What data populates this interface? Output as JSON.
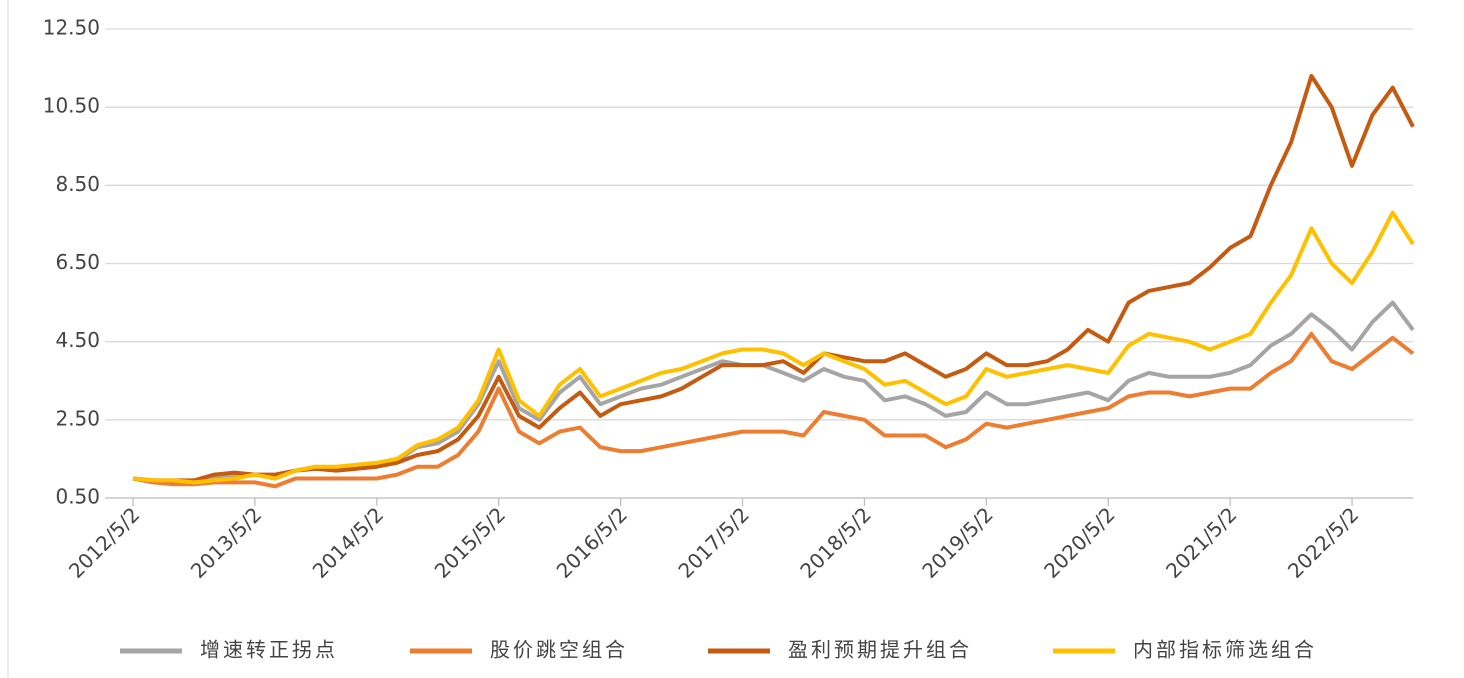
{
  "chart_data": {
    "type": "line",
    "categories": [
      "2012/5/2",
      null,
      null,
      null,
      null,
      null,
      "2013/5/2",
      null,
      null,
      null,
      null,
      null,
      "2014/5/2",
      null,
      null,
      null,
      null,
      null,
      "2015/5/2",
      null,
      null,
      null,
      null,
      null,
      "2016/5/2",
      null,
      null,
      null,
      null,
      null,
      "2017/5/2",
      null,
      null,
      null,
      null,
      null,
      "2018/5/2",
      null,
      null,
      null,
      null,
      null,
      "2019/5/2",
      null,
      null,
      null,
      null,
      null,
      "2020/5/2",
      null,
      null,
      null,
      null,
      null,
      "2021/5/2",
      null,
      null,
      null,
      null,
      null,
      "2022/5/2",
      null,
      null,
      null
    ],
    "series": [
      {
        "name": "增速转正拐点",
        "color": "#a5a5a5",
        "values": [
          1.0,
          0.95,
          0.9,
          0.85,
          1.0,
          1.05,
          1.1,
          1.0,
          1.2,
          1.3,
          1.25,
          1.3,
          1.35,
          1.45,
          1.8,
          1.9,
          2.2,
          2.9,
          4.0,
          2.8,
          2.5,
          3.2,
          3.6,
          2.9,
          3.1,
          3.3,
          3.4,
          3.6,
          3.8,
          4.0,
          3.9,
          3.9,
          3.7,
          3.5,
          3.8,
          3.6,
          3.5,
          3.0,
          3.1,
          2.9,
          2.6,
          2.7,
          3.2,
          2.9,
          2.9,
          3.0,
          3.1,
          3.2,
          3.0,
          3.5,
          3.7,
          3.6,
          3.6,
          3.6,
          3.7,
          3.9,
          4.4,
          4.7,
          5.2,
          4.8,
          4.3,
          5.0,
          5.5,
          4.8
        ]
      },
      {
        "name": "股价跳空组合",
        "color": "#ed7d31",
        "values": [
          1.0,
          0.9,
          0.85,
          0.85,
          0.9,
          0.9,
          0.9,
          0.8,
          1.0,
          1.0,
          1.0,
          1.0,
          1.0,
          1.1,
          1.3,
          1.3,
          1.6,
          2.2,
          3.3,
          2.2,
          1.9,
          2.2,
          2.3,
          1.8,
          1.7,
          1.7,
          1.8,
          1.9,
          2.0,
          2.1,
          2.2,
          2.2,
          2.2,
          2.1,
          2.7,
          2.6,
          2.5,
          2.1,
          2.1,
          2.1,
          1.8,
          2.0,
          2.4,
          2.3,
          2.4,
          2.5,
          2.6,
          2.7,
          2.8,
          3.1,
          3.2,
          3.2,
          3.1,
          3.2,
          3.3,
          3.3,
          3.7,
          4.0,
          4.7,
          4.0,
          3.8,
          4.2,
          4.6,
          4.2
        ]
      },
      {
        "name": "盈利预期提升组合",
        "color": "#c55a11",
        "values": [
          1.0,
          0.95,
          0.95,
          0.95,
          1.1,
          1.15,
          1.1,
          1.1,
          1.2,
          1.25,
          1.2,
          1.25,
          1.3,
          1.4,
          1.6,
          1.7,
          2.0,
          2.6,
          3.6,
          2.6,
          2.3,
          2.8,
          3.2,
          2.6,
          2.9,
          3.0,
          3.1,
          3.3,
          3.6,
          3.9,
          3.9,
          3.9,
          4.0,
          3.7,
          4.2,
          4.1,
          4.0,
          4.0,
          4.2,
          3.9,
          3.6,
          3.8,
          4.2,
          3.9,
          3.9,
          4.0,
          4.3,
          4.8,
          4.5,
          5.5,
          5.8,
          5.9,
          6.0,
          6.4,
          6.9,
          7.2,
          8.5,
          9.6,
          11.3,
          10.5,
          9.0,
          10.3,
          11.0,
          10.0
        ]
      },
      {
        "name": "内部指标筛选组合",
        "color": "#ffc000",
        "values": [
          1.0,
          0.95,
          0.95,
          0.9,
          0.95,
          1.0,
          1.1,
          1.0,
          1.2,
          1.3,
          1.3,
          1.35,
          1.4,
          1.5,
          1.85,
          2.0,
          2.3,
          3.0,
          4.3,
          3.0,
          2.6,
          3.4,
          3.8,
          3.1,
          3.3,
          3.5,
          3.7,
          3.8,
          4.0,
          4.2,
          4.3,
          4.3,
          4.2,
          3.9,
          4.2,
          4.0,
          3.8,
          3.4,
          3.5,
          3.2,
          2.9,
          3.1,
          3.8,
          3.6,
          3.7,
          3.8,
          3.9,
          3.8,
          3.7,
          4.4,
          4.7,
          4.6,
          4.5,
          4.3,
          4.5,
          4.7,
          5.5,
          6.2,
          7.4,
          6.5,
          6.0,
          6.8,
          7.8,
          7.0
        ]
      }
    ],
    "ylim": [
      0.5,
      12.5
    ],
    "yticks": [
      {
        "value": 0.5,
        "label": "0.50"
      },
      {
        "value": 2.5,
        "label": "2.50"
      },
      {
        "value": 4.5,
        "label": "4.50"
      },
      {
        "value": 6.5,
        "label": "6.50"
      },
      {
        "value": 8.5,
        "label": "8.50"
      },
      {
        "value": 10.5,
        "label": "10.50"
      },
      {
        "value": 12.5,
        "label": "12.50"
      }
    ],
    "grid": true,
    "legend": "bottom"
  }
}
